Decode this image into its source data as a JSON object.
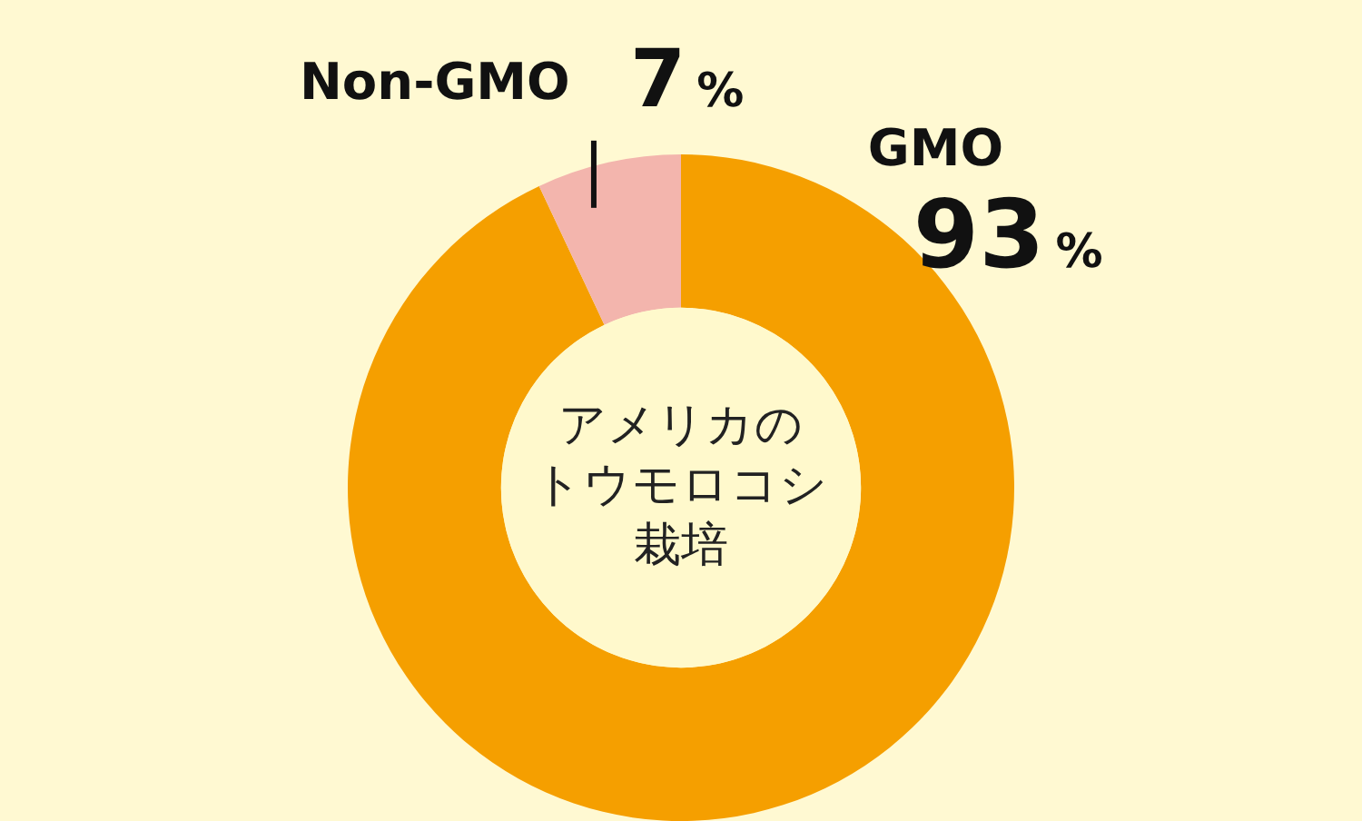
{
  "chart_data": {
    "type": "donut",
    "title": "アメリカのトウモロコシ栽培",
    "categories": [
      "GMO",
      "Non-GMO"
    ],
    "values": [
      93,
      7
    ],
    "colors": [
      "#f59f00",
      "#f3b5ad"
    ],
    "value_labels": [
      "93%",
      "7%"
    ],
    "legend": false
  }
}
